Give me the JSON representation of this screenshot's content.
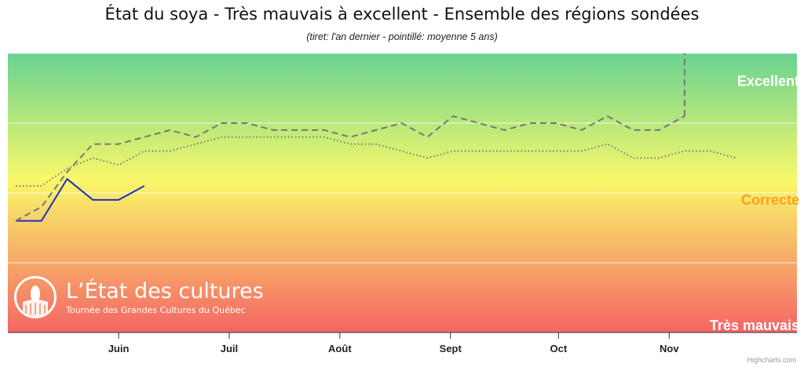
{
  "title": "État du soya - Très mauvais à excellent - Ensemble des régions sondées",
  "subtitle": "(tiret: l'an dernier - pointillé: moyenne 5 ans)",
  "logo": {
    "name": "L’État des cultures",
    "tagline": "Tournée des Grandes Cultures du Québec"
  },
  "credits": "Highcharts.com",
  "colors": {
    "gradient_top": "#68d391",
    "gradient_mid": "#f8f86a",
    "gradient_bottom": "#f56565",
    "current_line": "#1f2fbf",
    "comparison_lines": "#777777",
    "excellent_label": "#ffffff",
    "correcte_label": "#ff9f1a",
    "tres_mauvais_label": "#ffffff"
  },
  "chart_data": {
    "type": "line",
    "x_unit": "week index (roughly weekly from late May to mid-November)",
    "xlim": [
      0,
      30
    ],
    "ylim": [
      0,
      4
    ],
    "grid": "horizontal lines at levels 1, 2, 3",
    "levels": [
      {
        "label": "Excellent",
        "value": 3.6
      },
      {
        "label": "Correcte",
        "value": 1.9
      },
      {
        "label": "Très mauvais",
        "value": 0.1
      }
    ],
    "x_ticks": [
      {
        "label": "Juin",
        "x": 4
      },
      {
        "label": "Juil",
        "x": 8.3
      },
      {
        "label": "Août",
        "x": 12.6
      },
      {
        "label": "Sept",
        "x": 16.9
      },
      {
        "label": "Oct",
        "x": 21.1
      },
      {
        "label": "Nov",
        "x": 25.4
      }
    ],
    "series": [
      {
        "style": "solid",
        "x": [
          0,
          1,
          2,
          3,
          4,
          5
        ],
        "y": [
          1.6,
          1.6,
          2.2,
          1.9,
          1.9,
          2.1
        ]
      },
      {
        "style": "dashed",
        "x": [
          0,
          1,
          2,
          3,
          4,
          5,
          6,
          7,
          8,
          9,
          10,
          11,
          12,
          13,
          14,
          15,
          16,
          17,
          18,
          19,
          20,
          21,
          22,
          23,
          24,
          25,
          26
        ],
        "y": [
          1.6,
          1.8,
          2.3,
          2.7,
          2.7,
          2.8,
          2.9,
          2.8,
          3.0,
          3.0,
          2.9,
          2.9,
          2.9,
          2.8,
          2.9,
          3.0,
          2.8,
          3.1,
          3.0,
          2.9,
          3.0,
          3.0,
          2.9,
          3.1,
          2.9,
          2.9,
          3.1
        ]
      },
      {
        "style": "dashed-vertical",
        "x": [
          26,
          26
        ],
        "y": [
          3.1,
          4.0
        ]
      },
      {
        "style": "dotted",
        "x": [
          0,
          1,
          2,
          3,
          4,
          5,
          6,
          7,
          8,
          9,
          10,
          11,
          12,
          13,
          14,
          15,
          16,
          17,
          18,
          19,
          20,
          21,
          22,
          23,
          24,
          25,
          26,
          27,
          28
        ],
        "y": [
          2.1,
          2.1,
          2.35,
          2.5,
          2.4,
          2.6,
          2.6,
          2.7,
          2.8,
          2.8,
          2.8,
          2.8,
          2.8,
          2.7,
          2.7,
          2.6,
          2.5,
          2.6,
          2.6,
          2.6,
          2.6,
          2.6,
          2.6,
          2.7,
          2.5,
          2.5,
          2.6,
          2.6,
          2.5
        ]
      }
    ]
  }
}
